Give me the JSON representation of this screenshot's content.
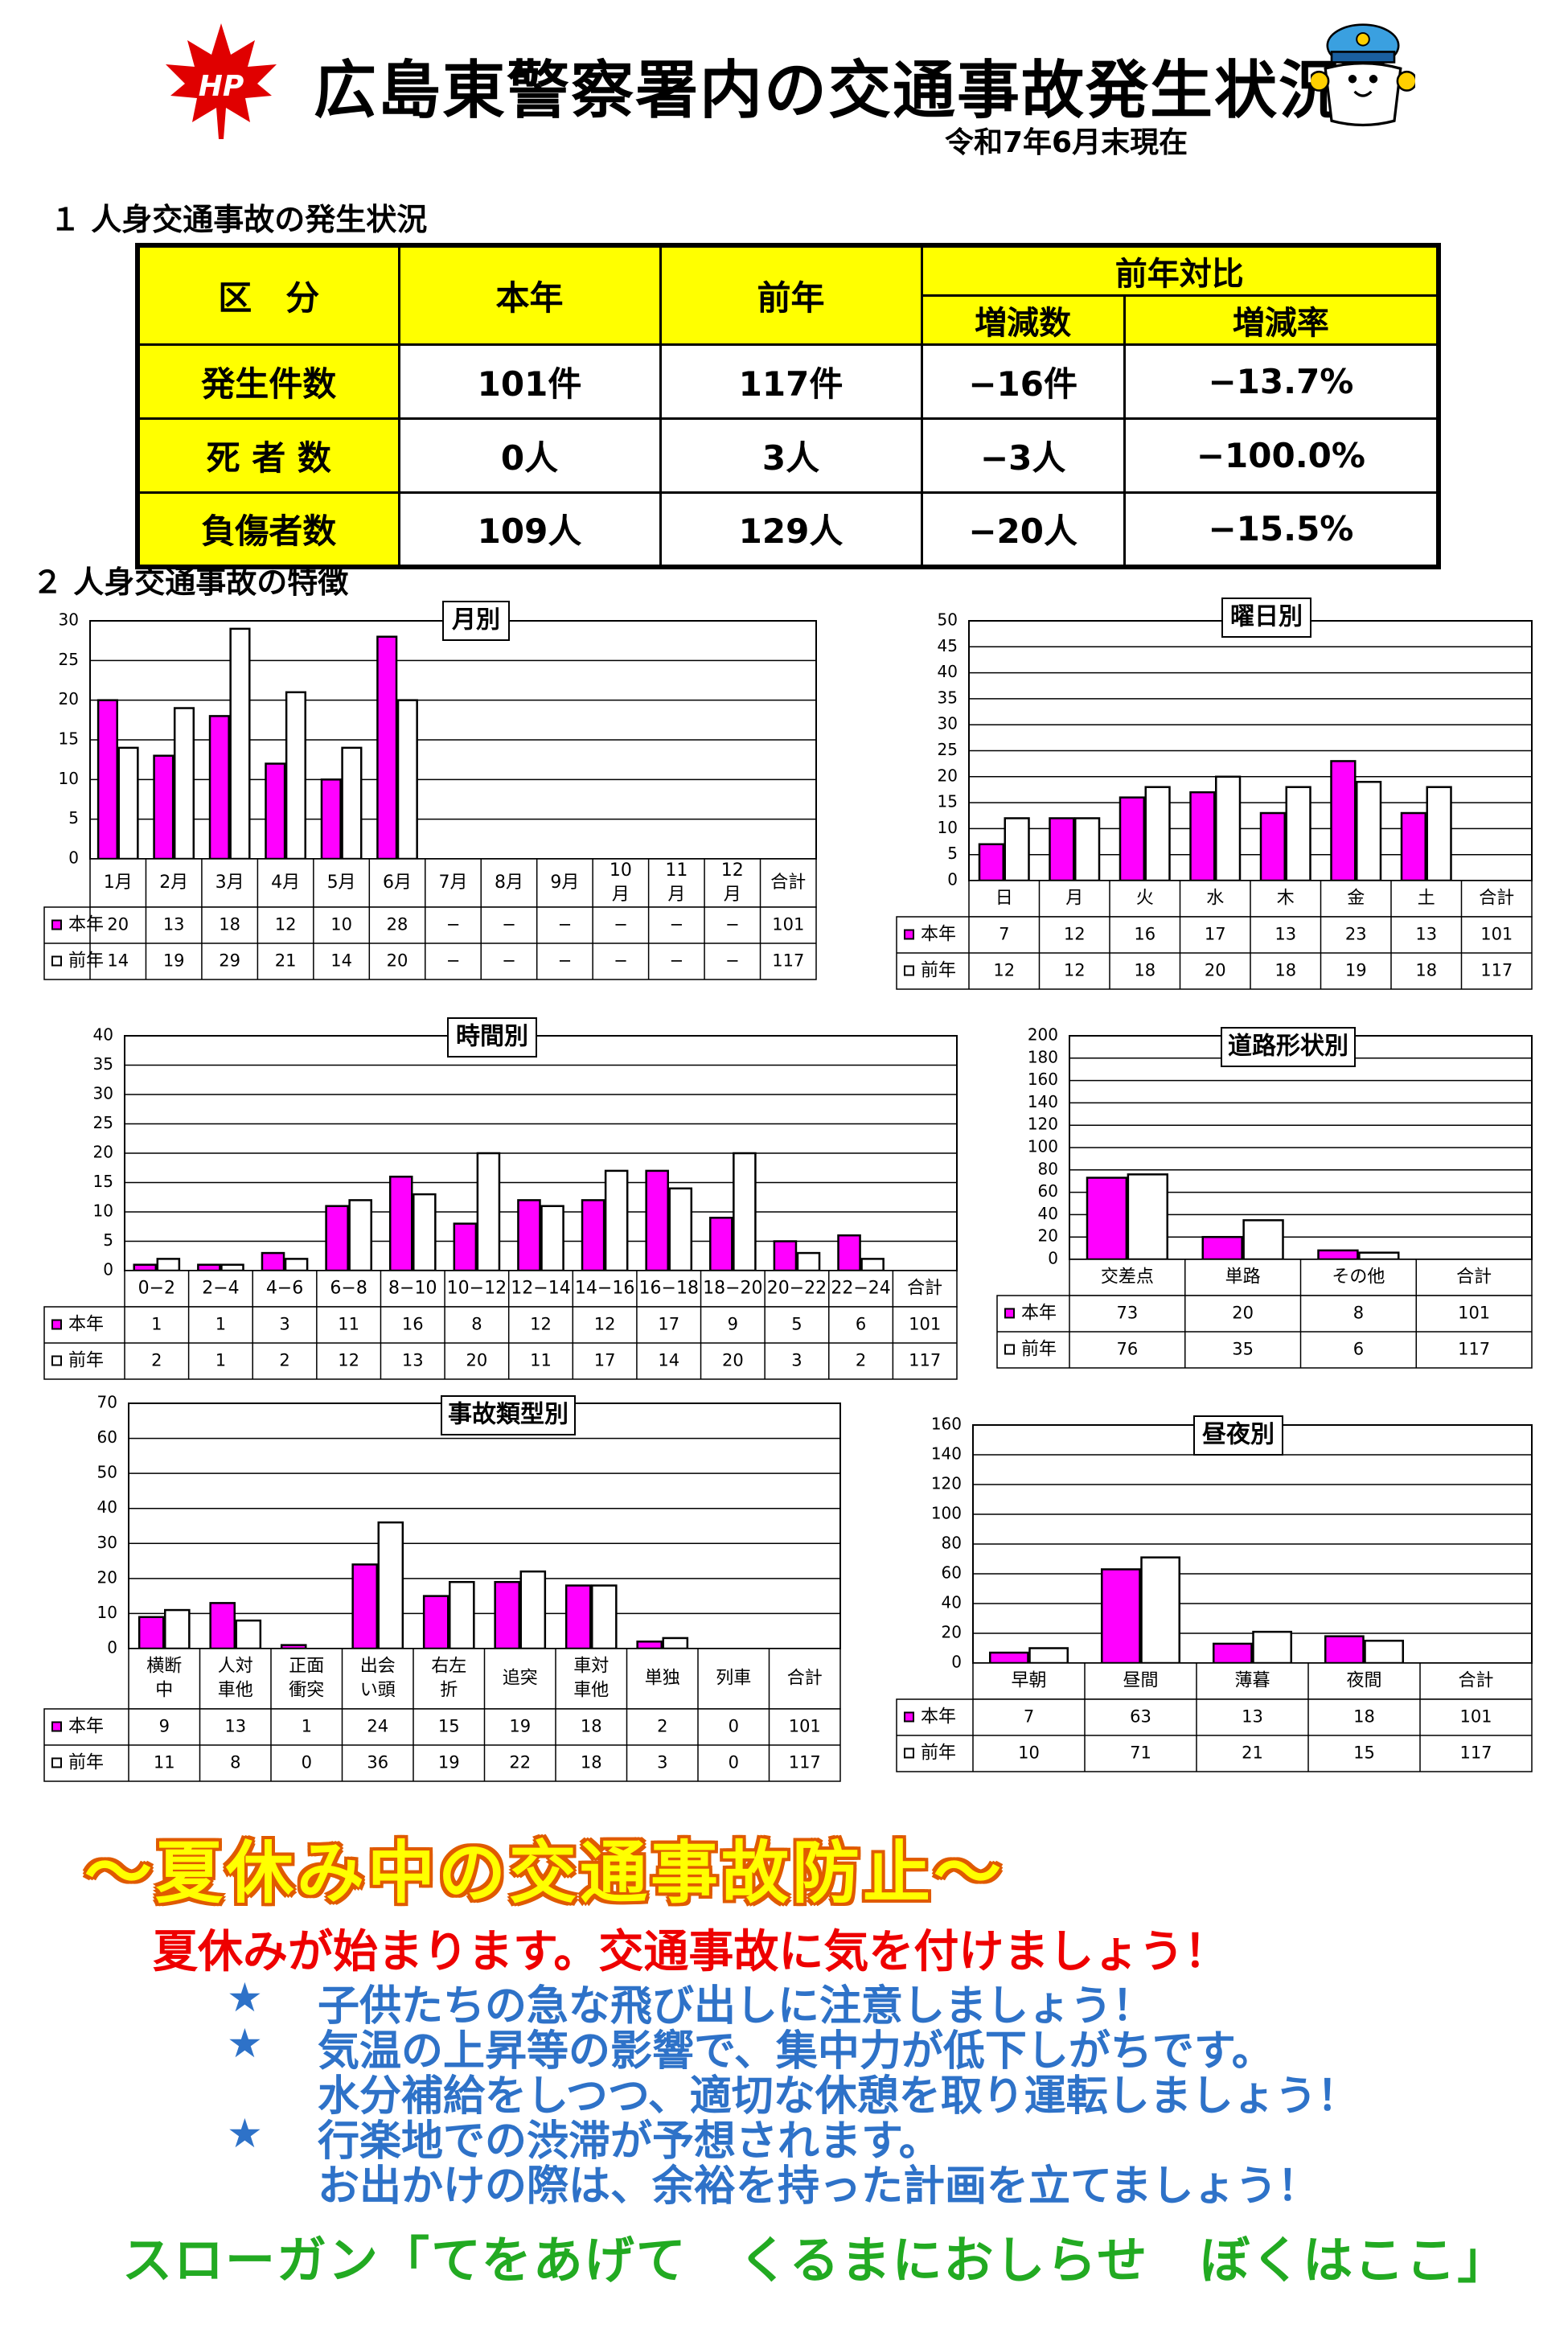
{
  "header": {
    "title": "広島東警察署内の交通事故発生状況",
    "as_of": "令和7年6月末現在",
    "logo_text": "HP",
    "logo_color": "#e00000"
  },
  "section1": {
    "heading": "１ 人身交通事故の発生状況",
    "headers": {
      "category": "区　分",
      "this_year": "本年",
      "last_year": "前年",
      "comparison": "前年対比",
      "change": "増減数",
      "rate": "増減率"
    },
    "rows": [
      {
        "label": "発生件数",
        "this_year": "101件",
        "last_year": "117件",
        "change": "−16件",
        "rate": "−13.7%"
      },
      {
        "label": "死 者 数",
        "this_year": "0人",
        "last_year": "3人",
        "change": "−3人",
        "rate": "−100.0%"
      },
      {
        "label": "負傷者数",
        "this_year": "109人",
        "last_year": "129人",
        "change": "−20人",
        "rate": "−15.5%"
      }
    ]
  },
  "section2": {
    "heading": "２ 人身交通事故の特徴"
  },
  "colors": {
    "this_year": "#ff00ff",
    "last_year": "#ffffff",
    "grid": "#000000",
    "table_header": "#ffff00"
  },
  "chart_data": [
    {
      "id": "monthly",
      "type": "bar",
      "title": "月別",
      "ylim": [
        0,
        30
      ],
      "yticks": [
        0,
        5,
        10,
        15,
        20,
        25,
        30
      ],
      "categories": [
        "1月",
        "2月",
        "3月",
        "4月",
        "5月",
        "6月",
        "7月",
        "8月",
        "9月",
        "10|月",
        "11|月",
        "12|月"
      ],
      "total_label": "合計",
      "series": [
        {
          "name": "本年",
          "values": [
            20,
            13,
            18,
            12,
            10,
            28,
            null,
            null,
            null,
            null,
            null,
            null
          ],
          "labels": [
            "20",
            "13",
            "18",
            "12",
            "10",
            "28",
            "−",
            "−",
            "−",
            "−",
            "−",
            "−"
          ],
          "total": "101"
        },
        {
          "name": "前年",
          "values": [
            14,
            19,
            29,
            21,
            14,
            20,
            null,
            null,
            null,
            null,
            null,
            null
          ],
          "labels": [
            "14",
            "19",
            "29",
            "21",
            "14",
            "20",
            "−",
            "−",
            "−",
            "−",
            "−",
            "−"
          ],
          "total": "117"
        }
      ]
    },
    {
      "id": "weekday",
      "type": "bar",
      "title": "曜日別",
      "ylim": [
        0,
        50
      ],
      "yticks": [
        0,
        5,
        10,
        15,
        20,
        25,
        30,
        35,
        40,
        45,
        50
      ],
      "categories": [
        "日",
        "月",
        "火",
        "水",
        "木",
        "金",
        "土"
      ],
      "total_label": "合計",
      "series": [
        {
          "name": "本年",
          "values": [
            7,
            12,
            16,
            17,
            13,
            23,
            13
          ],
          "labels": [
            "7",
            "12",
            "16",
            "17",
            "13",
            "23",
            "13"
          ],
          "total": "101"
        },
        {
          "name": "前年",
          "values": [
            12,
            12,
            18,
            20,
            18,
            19,
            18
          ],
          "labels": [
            "12",
            "12",
            "18",
            "20",
            "18",
            "19",
            "18"
          ],
          "total": "117"
        }
      ]
    },
    {
      "id": "hourly",
      "type": "bar",
      "title": "時間別",
      "ylim": [
        0,
        40
      ],
      "yticks": [
        0,
        5,
        10,
        15,
        20,
        25,
        30,
        35,
        40
      ],
      "categories": [
        "0−2",
        "2−4",
        "4−6",
        "6−8",
        "8−10",
        "10−12",
        "12−14",
        "14−16",
        "16−18",
        "18−20",
        "20−22",
        "22−24"
      ],
      "total_label": "合計",
      "series": [
        {
          "name": "本年",
          "values": [
            1,
            1,
            3,
            11,
            16,
            8,
            12,
            12,
            17,
            9,
            5,
            6
          ],
          "labels": [
            "1",
            "1",
            "3",
            "11",
            "16",
            "8",
            "12",
            "12",
            "17",
            "9",
            "5",
            "6"
          ],
          "total": "101"
        },
        {
          "name": "前年",
          "values": [
            2,
            1,
            2,
            12,
            13,
            20,
            11,
            17,
            14,
            20,
            3,
            2
          ],
          "labels": [
            "2",
            "1",
            "2",
            "12",
            "13",
            "20",
            "11",
            "17",
            "14",
            "20",
            "3",
            "2"
          ],
          "total": "117"
        }
      ]
    },
    {
      "id": "road",
      "type": "bar",
      "title": "道路形状別",
      "ylim": [
        0,
        200
      ],
      "yticks": [
        0,
        20,
        40,
        60,
        80,
        100,
        120,
        140,
        160,
        180,
        200
      ],
      "categories": [
        "交差点",
        "単路",
        "その他"
      ],
      "total_label": "合計",
      "series": [
        {
          "name": "本年",
          "values": [
            73,
            20,
            8
          ],
          "labels": [
            "73",
            "20",
            "8"
          ],
          "total": "101"
        },
        {
          "name": "前年",
          "values": [
            76,
            35,
            6
          ],
          "labels": [
            "76",
            "35",
            "6"
          ],
          "total": "117"
        }
      ]
    },
    {
      "id": "type",
      "type": "bar",
      "title": "事故類型別",
      "ylim": [
        0,
        70
      ],
      "yticks": [
        0,
        10,
        20,
        30,
        40,
        50,
        60,
        70
      ],
      "categories": [
        "横断|中",
        "人対|車他",
        "正面|衝突",
        "出会|い頭",
        "右左|折",
        "追突",
        "車対|車他",
        "単独",
        "列車"
      ],
      "total_label": "合計",
      "series": [
        {
          "name": "本年",
          "values": [
            9,
            13,
            1,
            24,
            15,
            19,
            18,
            2,
            0
          ],
          "labels": [
            "9",
            "13",
            "1",
            "24",
            "15",
            "19",
            "18",
            "2",
            "0"
          ],
          "total": "101"
        },
        {
          "name": "前年",
          "values": [
            11,
            8,
            0,
            36,
            19,
            22,
            18,
            3,
            0
          ],
          "labels": [
            "11",
            "8",
            "0",
            "36",
            "19",
            "22",
            "18",
            "3",
            "0"
          ],
          "total": "117"
        }
      ]
    },
    {
      "id": "daynight",
      "type": "bar",
      "title": "昼夜別",
      "ylim": [
        0,
        160
      ],
      "yticks": [
        0,
        20,
        40,
        60,
        80,
        100,
        120,
        140,
        160
      ],
      "categories": [
        "早朝",
        "昼間",
        "薄暮",
        "夜間"
      ],
      "total_label": "合計",
      "series": [
        {
          "name": "本年",
          "values": [
            7,
            63,
            13,
            18
          ],
          "labels": [
            "7",
            "63",
            "13",
            "18"
          ],
          "total": "101"
        },
        {
          "name": "前年",
          "values": [
            10,
            71,
            21,
            15
          ],
          "labels": [
            "10",
            "71",
            "21",
            "15"
          ],
          "total": "117"
        }
      ]
    }
  ],
  "campaign": {
    "headline": "〜夏休み中の交通事故防止〜",
    "subhead": "夏休みが始まります。交通事故に気を付けましょう！",
    "star": "★",
    "bullets": [
      [
        "子供たちの急な飛び出しに注意しましょう！"
      ],
      [
        "気温の上昇等の影響で、集中力が低下しがちです。",
        "水分補給をしつつ、適切な休憩を取り運転しましょう！"
      ],
      [
        "行楽地での渋滞が予想されます。",
        "お出かけの際は、余裕を持った計画を立てましょう！"
      ]
    ],
    "slogan": "スローガン「てをあげて　くるまにおしらせ　ぼくはここ」"
  }
}
